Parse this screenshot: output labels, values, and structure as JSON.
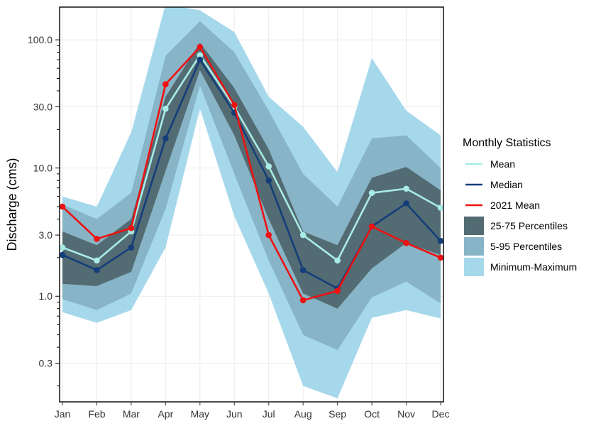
{
  "chart_data": {
    "type": "line",
    "title": "",
    "xlabel": "",
    "ylabel": "Discharge (cms)",
    "yscale": "log",
    "ylim": [
      0.15,
      180
    ],
    "yticks": [
      0.3,
      1.0,
      3.0,
      10.0,
      30.0,
      100.0
    ],
    "ytick_labels": [
      "0.3",
      "1.0",
      "3.0",
      "10.0",
      "30.0",
      "100.0"
    ],
    "categories": [
      "Jan",
      "Feb",
      "Mar",
      "Apr",
      "May",
      "Jun",
      "Jul",
      "Aug",
      "Sep",
      "Oct",
      "Nov",
      "Dec"
    ],
    "bands": [
      {
        "name": "Minimum-Maximum",
        "color": "#a6d8eb",
        "lower": [
          0.75,
          0.62,
          0.78,
          2.4,
          29,
          4.2,
          1.05,
          0.2,
          0.16,
          0.68,
          0.78,
          0.67
        ],
        "upper": [
          6.0,
          5.0,
          19,
          190,
          170,
          115,
          36,
          21,
          9.3,
          72,
          28,
          18
        ]
      },
      {
        "name": "5-95 Percentiles",
        "color": "#87b4c6",
        "lower": [
          0.95,
          0.78,
          1.05,
          4.8,
          44,
          9.0,
          1.9,
          0.5,
          0.38,
          0.98,
          1.3,
          0.88
        ],
        "upper": [
          5.2,
          4.0,
          6.4,
          75,
          140,
          80,
          28,
          9.0,
          5.0,
          17,
          18,
          10
        ]
      },
      {
        "name": "25-75 Percentiles",
        "color": "#536b72",
        "lower": [
          1.25,
          1.2,
          1.55,
          9.5,
          58,
          18,
          4.0,
          1.05,
          0.8,
          1.65,
          2.6,
          2.1
        ],
        "upper": [
          3.2,
          2.5,
          4.0,
          36,
          95,
          42,
          14,
          3.2,
          2.5,
          8.4,
          10.2,
          6.7
        ]
      }
    ],
    "series": [
      {
        "name": "Mean",
        "color": "#a8ece6",
        "values": [
          2.4,
          1.9,
          3.2,
          29,
          76,
          30,
          10.3,
          3.0,
          1.9,
          6.4,
          6.9,
          4.9
        ]
      },
      {
        "name": "Median",
        "color": "#143e7a",
        "values": [
          2.1,
          1.6,
          2.4,
          17,
          70,
          27,
          8.0,
          1.6,
          1.15,
          3.5,
          5.3,
          2.7
        ]
      },
      {
        "name": "2021 Mean",
        "color": "#ee1111",
        "values": [
          5.0,
          2.8,
          3.4,
          45,
          88,
          31,
          3.0,
          0.93,
          1.1,
          3.5,
          2.6,
          2.0
        ]
      }
    ],
    "legend": {
      "title": "Monthly Statistics",
      "position": "right",
      "items": [
        {
          "label": "Mean",
          "kind": "line",
          "color": "#a8ece6"
        },
        {
          "label": "Median",
          "kind": "line",
          "color": "#143e7a"
        },
        {
          "label": "2021 Mean",
          "kind": "line",
          "color": "#ee1111"
        },
        {
          "label": "25-75 Percentiles",
          "kind": "fill",
          "color": "#536b72"
        },
        {
          "label": "5-95 Percentiles",
          "kind": "fill",
          "color": "#87b4c6"
        },
        {
          "label": "Minimum-Maximum",
          "kind": "fill",
          "color": "#a6d8eb"
        }
      ]
    }
  }
}
